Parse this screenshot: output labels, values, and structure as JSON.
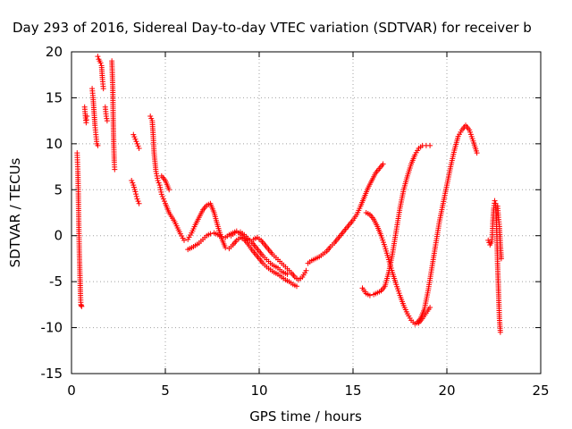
{
  "chart_data": {
    "type": "scatter",
    "title": "Day 293 of 2016, Sidereal Day-to-day VTEC variation (SDTVAR) for receiver b",
    "xlabel": "GPS time / hours",
    "ylabel": "SDTVAR / TECUs",
    "xlim": [
      0,
      25
    ],
    "ylim": [
      -15,
      20
    ],
    "xticks": [
      0,
      5,
      10,
      15,
      20,
      25
    ],
    "yticks": [
      -15,
      -10,
      -5,
      0,
      5,
      10,
      15,
      20
    ],
    "grid": true,
    "marker": "+",
    "color": "#ff0000",
    "series": [
      {
        "x": [
          0.3,
          0.32,
          0.34,
          0.36,
          0.38,
          0.4,
          0.42,
          0.44,
          0.46,
          0.48,
          0.5,
          0.52,
          0.54
        ],
        "y": [
          9,
          8,
          7,
          5,
          2.5,
          0,
          -2,
          -3.5,
          -5,
          -6.5,
          -7.5,
          -7.6,
          -7.7
        ]
      },
      {
        "x": [
          0.7,
          0.72,
          0.75,
          0.78,
          0.8,
          0.82
        ],
        "y": [
          14,
          13.5,
          12.8,
          12.3,
          12.6,
          13
        ]
      },
      {
        "x": [
          1.1,
          1.15,
          1.2,
          1.25,
          1.3,
          1.35,
          1.4
        ],
        "y": [
          16,
          15,
          13.5,
          12,
          11,
          10,
          9.8
        ]
      },
      {
        "x": [
          1.4,
          1.45,
          1.5,
          1.55,
          1.6,
          1.65,
          1.7
        ],
        "y": [
          19.5,
          19.2,
          19,
          18.8,
          18.5,
          17,
          16
        ]
      },
      {
        "x": [
          1.8,
          1.85,
          1.9
        ],
        "y": [
          14,
          13,
          12.5
        ]
      },
      {
        "x": [
          2.15,
          2.2,
          2.22,
          2.25,
          2.28,
          2.3
        ],
        "y": [
          19,
          16,
          13,
          10,
          8,
          7.2
        ]
      },
      {
        "x": [
          3.2,
          3.3,
          3.4,
          3.5,
          3.6
        ],
        "y": [
          6,
          5.5,
          4.8,
          4,
          3.5
        ]
      },
      {
        "x": [
          3.3,
          3.4,
          3.5,
          3.6
        ],
        "y": [
          11,
          10.5,
          10,
          9.5
        ]
      },
      {
        "x": [
          4.2,
          4.3,
          4.35,
          4.4,
          4.5,
          4.6,
          4.7,
          4.8,
          4.9,
          5.0,
          5.2,
          5.5,
          5.8,
          6.0,
          6.2,
          6.4,
          6.6,
          6.8,
          7.0,
          7.2,
          7.4,
          7.6,
          7.8,
          8.0,
          8.2,
          8.4,
          8.6,
          8.8,
          9.0,
          9.2,
          9.4,
          9.6,
          9.8,
          10.0,
          10.2,
          10.4,
          10.6,
          10.8,
          11.0,
          11.2,
          11.4,
          11.6,
          11.8,
          12.0
        ],
        "y": [
          13,
          12.5,
          11,
          9,
          7,
          6,
          5.5,
          4.5,
          4,
          3.5,
          2.5,
          1.5,
          0.2,
          -0.5,
          -0.4,
          0.3,
          1.2,
          2,
          2.8,
          3.3,
          3.5,
          2.5,
          1,
          -0.3,
          -1.3,
          -1.4,
          -1.0,
          -0.5,
          -0.2,
          -0.4,
          -0.9,
          -1.5,
          -2.0,
          -2.5,
          -3.0,
          -3.4,
          -3.7,
          -4.0,
          -4.2,
          -4.5,
          -4.8,
          -5.0,
          -5.3,
          -5.5
        ]
      },
      {
        "x": [
          4.8,
          5.0,
          5.2
        ],
        "y": [
          6.5,
          6.0,
          5.0
        ]
      },
      {
        "x": [
          6.2,
          6.5,
          6.8,
          7.0,
          7.2,
          7.4,
          7.6,
          7.8,
          8.0,
          8.2,
          8.4,
          8.6,
          8.8,
          9.0,
          9.2,
          9.4,
          9.6,
          9.8,
          10.0,
          10.2,
          10.4,
          10.6,
          10.8,
          11.0,
          11.2,
          11.5
        ],
        "y": [
          -1.5,
          -1.2,
          -0.8,
          -0.4,
          0,
          0.2,
          0.3,
          0.1,
          -0.1,
          -0.2,
          0.1,
          0.3,
          0.5,
          0.4,
          0.1,
          -0.3,
          -0.7,
          -1.2,
          -1.7,
          -2.2,
          -2.6,
          -3.0,
          -3.3,
          -3.5,
          -3.9,
          -4.2
        ]
      },
      {
        "x": [
          8.5,
          8.7,
          8.9,
          9.1,
          9.3,
          9.5,
          9.7,
          9.9,
          10.1,
          10.3,
          10.5,
          10.7,
          10.9,
          11.1,
          11.3,
          11.5,
          11.7,
          11.9,
          12.1,
          12.3,
          12.5
        ],
        "y": [
          0,
          0.3,
          0.3,
          0,
          -0.3,
          -0.5,
          -0.4,
          -0.2,
          -0.5,
          -1.0,
          -1.5,
          -2.0,
          -2.4,
          -2.8,
          -3.2,
          -3.6,
          -4.0,
          -4.5,
          -4.8,
          -4.5,
          -3.8
        ]
      },
      {
        "x": [
          12.6,
          12.8,
          13.0,
          13.2,
          13.4,
          13.6,
          13.8,
          14.0,
          14.2,
          14.4,
          14.6,
          14.8,
          15.0,
          15.2,
          15.4,
          15.6,
          15.8,
          16.0,
          16.2,
          16.4,
          16.6
        ],
        "y": [
          -3.0,
          -2.7,
          -2.5,
          -2.3,
          -2.0,
          -1.7,
          -1.2,
          -0.8,
          -0.3,
          0.2,
          0.7,
          1.2,
          1.7,
          2.3,
          3.2,
          4.2,
          5.2,
          6.0,
          6.8,
          7.3,
          7.8
        ]
      },
      {
        "x": [
          15.5,
          15.7,
          15.9,
          16.1,
          16.3,
          16.5,
          16.7,
          16.9,
          17.1,
          17.3,
          17.5,
          17.7,
          17.9,
          18.1,
          18.3,
          18.5,
          18.7,
          18.9,
          19.1
        ],
        "y": [
          -5.7,
          -6.3,
          -6.5,
          -6.4,
          -6.2,
          -6.0,
          -5.5,
          -4.0,
          -2.0,
          0.5,
          3.0,
          5.0,
          6.5,
          7.8,
          8.8,
          9.5,
          9.8,
          9.8,
          9.8
        ]
      },
      {
        "x": [
          15.7,
          15.9,
          16.1,
          16.3,
          16.5,
          16.7,
          16.9,
          17.1,
          17.3,
          17.5,
          17.7,
          17.9,
          18.1,
          18.3,
          18.5,
          18.7,
          18.9,
          19.1
        ],
        "y": [
          2.5,
          2.3,
          1.8,
          1.0,
          0,
          -1.2,
          -2.6,
          -4.0,
          -5.3,
          -6.5,
          -7.6,
          -8.5,
          -9.2,
          -9.6,
          -9.5,
          -9.0,
          -8.4,
          -7.8
        ]
      },
      {
        "x": [
          18.4,
          18.6,
          18.8,
          19.0,
          19.2,
          19.4,
          19.6,
          19.8,
          20.0,
          20.2,
          20.4,
          20.6,
          20.8,
          21.0,
          21.2,
          21.4,
          21.6
        ],
        "y": [
          -9.5,
          -9.0,
          -8.0,
          -6.0,
          -3.5,
          -1.0,
          1.5,
          3.5,
          5.5,
          7.5,
          9.3,
          10.8,
          11.5,
          12,
          11.5,
          10.3,
          9.0
        ]
      },
      {
        "x": [
          22.2,
          22.3,
          22.4,
          22.45,
          22.5,
          22.55,
          22.6,
          22.65,
          22.7,
          22.75,
          22.8,
          22.85
        ],
        "y": [
          -0.5,
          -1.0,
          -0.6,
          1.5,
          3.0,
          3.8,
          3.5,
          1.0,
          -3.0,
          -6.0,
          -9.0,
          -10.5
        ]
      },
      {
        "x": [
          22.7,
          22.75,
          22.8,
          22.85,
          22.9
        ],
        "y": [
          3.2,
          2.0,
          1.0,
          -1.0,
          -2.5
        ]
      }
    ]
  }
}
